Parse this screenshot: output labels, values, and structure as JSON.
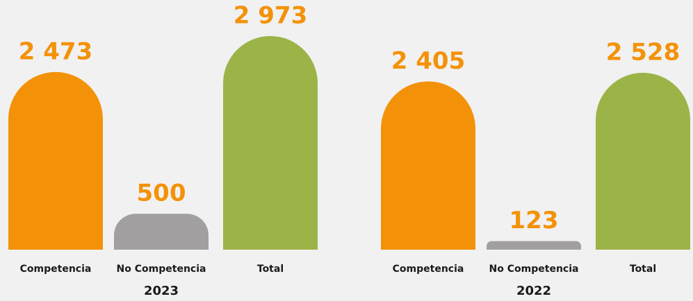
{
  "chart_data": [
    {
      "type": "bar",
      "title": "2023",
      "categories": [
        "Competencia",
        "No Competencia",
        "Total"
      ],
      "values": [
        2473,
        500,
        2973
      ],
      "value_labels": [
        "2 473",
        "500",
        "2 973"
      ],
      "colors": [
        "#f39209",
        "#a19f9f",
        "#9cb347"
      ]
    },
    {
      "type": "bar",
      "title": "2022",
      "categories": [
        "Competencia",
        "No Competencia",
        "Total"
      ],
      "values": [
        2405,
        123,
        2528
      ],
      "value_labels": [
        "2 405",
        "123",
        "2 528"
      ],
      "colors": [
        "#f39209",
        "#a19f9f",
        "#9cb347"
      ]
    }
  ]
}
